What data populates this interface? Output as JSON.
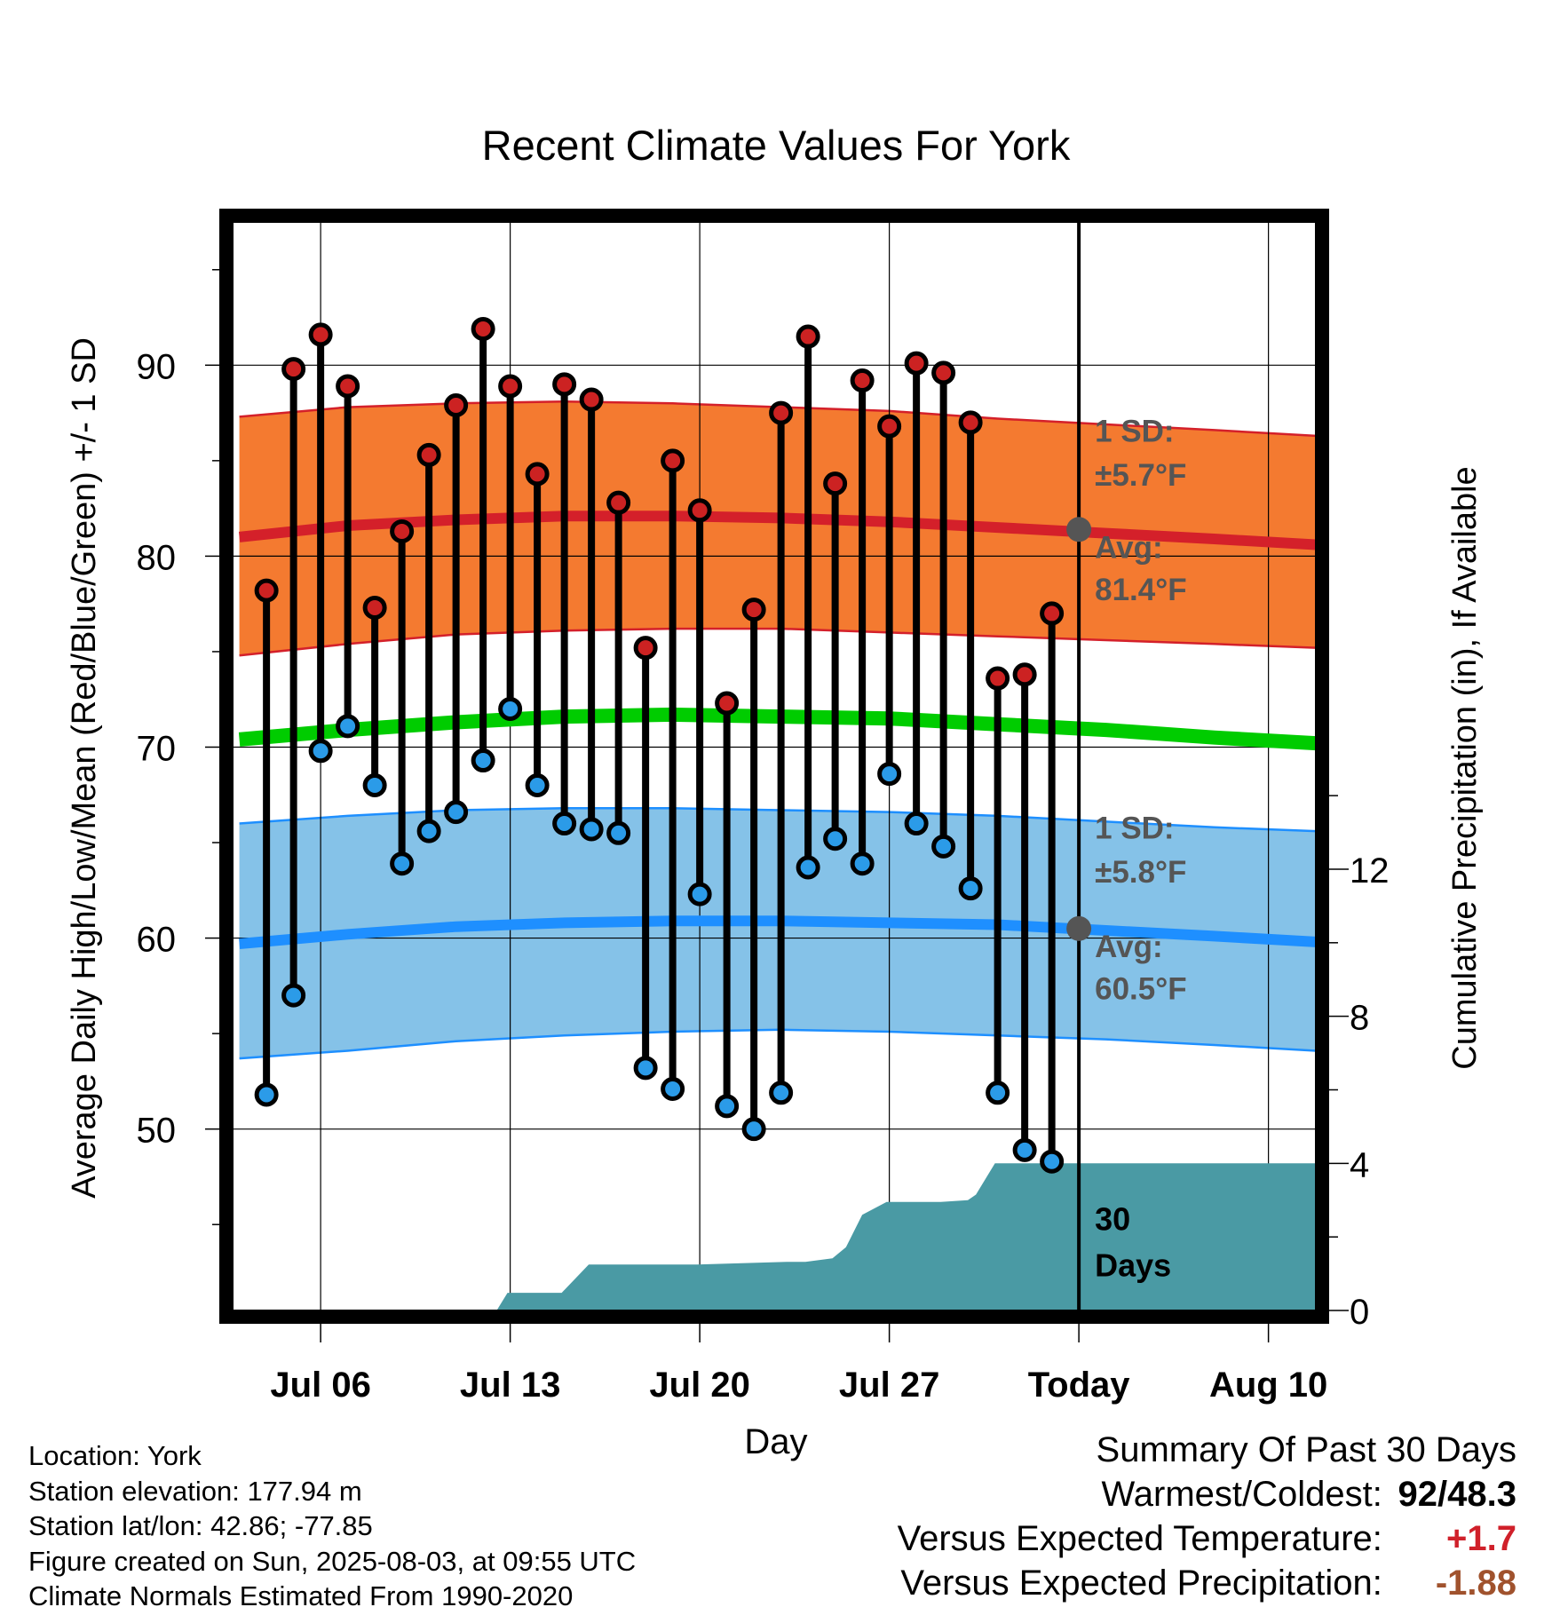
{
  "chart_data": {
    "type": "line",
    "title": "Recent Climate Values For York",
    "xlabel": "Day",
    "ylabel": "Average Daily High/Low/Mean (Red/Blue/Green) +/- 1 SD",
    "y2label": "Cumulative Precipitation (in), If Available",
    "xlim": [
      2.75,
      42.75
    ],
    "ylim": [
      40.5,
      97.5
    ],
    "y2lim": [
      0,
      29.6
    ],
    "x_ticks": [
      6,
      13,
      20,
      27,
      34,
      41
    ],
    "x_tick_labels": [
      "Jul 06",
      "Jul 13",
      "Jul 20",
      "Jul 27",
      "Today",
      "Aug 10"
    ],
    "y_ticks": [
      50,
      60,
      70,
      80,
      90
    ],
    "y_tick_labels": [
      "50",
      "60",
      "70",
      "80",
      "90"
    ],
    "y2_ticks": [
      0,
      4,
      8,
      12
    ],
    "y2_tick_labels": [
      "0",
      "4",
      "8",
      "12"
    ],
    "today_x": 34,
    "days": [
      4,
      5,
      6,
      7,
      8,
      9,
      10,
      11,
      12,
      13,
      14,
      15,
      16,
      17,
      18,
      19,
      20,
      21,
      22,
      23,
      24,
      25,
      26,
      27,
      28,
      29,
      30,
      31,
      32,
      33
    ],
    "highs": [
      78.2,
      89.8,
      91.6,
      88.9,
      77.3,
      81.3,
      85.3,
      87.9,
      91.9,
      88.9,
      84.3,
      89.0,
      88.2,
      82.8,
      75.2,
      85.0,
      82.4,
      72.3,
      77.2,
      87.5,
      91.5,
      83.8,
      89.2,
      86.8,
      90.1,
      89.6,
      87.0,
      73.6,
      73.8,
      77.0
    ],
    "lows": [
      51.8,
      57.0,
      69.8,
      71.1,
      68.0,
      63.9,
      65.6,
      66.6,
      69.3,
      72.0,
      68.0,
      66.0,
      65.7,
      65.5,
      53.2,
      52.1,
      62.3,
      51.2,
      50.0,
      51.9,
      63.7,
      65.2,
      63.9,
      68.6,
      66.0,
      64.8,
      62.6,
      51.9,
      48.9,
      48.3
    ],
    "normals_x": [
      3,
      7,
      11,
      15,
      19,
      23,
      27,
      31,
      35,
      39,
      42.75
    ],
    "normal_high": [
      81.0,
      81.6,
      81.9,
      82.1,
      82.1,
      82.0,
      81.8,
      81.5,
      81.2,
      80.9,
      80.6
    ],
    "normal_high_upper": [
      87.3,
      87.8,
      88.0,
      88.1,
      88.0,
      87.8,
      87.6,
      87.2,
      86.9,
      86.6,
      86.3
    ],
    "normal_high_lower": [
      74.8,
      75.4,
      75.9,
      76.1,
      76.2,
      76.2,
      76.0,
      75.8,
      75.6,
      75.4,
      75.2
    ],
    "normal_mean": [
      70.4,
      70.9,
      71.3,
      71.6,
      71.7,
      71.6,
      71.5,
      71.2,
      70.9,
      70.5,
      70.2
    ],
    "normal_low": [
      59.7,
      60.2,
      60.6,
      60.8,
      60.9,
      60.9,
      60.8,
      60.7,
      60.4,
      60.1,
      59.8
    ],
    "normal_low_upper": [
      66.0,
      66.4,
      66.7,
      66.8,
      66.8,
      66.7,
      66.6,
      66.4,
      66.1,
      65.8,
      65.6
    ],
    "normal_low_lower": [
      53.7,
      54.1,
      54.6,
      54.9,
      55.1,
      55.2,
      55.1,
      54.9,
      54.7,
      54.4,
      54.1
    ],
    "precip_x": [
      3,
      12.5,
      12.9,
      14.9,
      15.9,
      19.9,
      23.2,
      23.9,
      24.9,
      25.4,
      26.0,
      26.9,
      27.9,
      28.9,
      29.9,
      30.2,
      30.9,
      34,
      42.75
    ],
    "precip_cum": [
      0,
      0,
      0.48,
      0.48,
      1.25,
      1.25,
      1.32,
      1.32,
      1.42,
      1.72,
      2.6,
      2.95,
      2.95,
      2.95,
      3.0,
      3.15,
      4.0,
      4.0,
      4.0
    ],
    "annotations": {
      "high_sd_label": "1 SD:",
      "high_sd_value": "±5.7°F",
      "high_avg_label": "Avg:",
      "high_avg_value": "81.4°F",
      "low_sd_label": "1 SD:",
      "low_sd_value": "±5.8°F",
      "low_avg_label": "Avg:",
      "low_avg_value": "60.5°F",
      "days_label_1": "30",
      "days_label_2": "Days"
    },
    "today_high_avg": 81.4,
    "today_low_avg": 60.5,
    "grid": true,
    "colors": {
      "high_band": "#f47a30",
      "high_line": "#d4202a",
      "low_band": "#85c2e8",
      "low_line": "#1e8fff",
      "mean_line": "#00cc00",
      "precip_fill": "#4a9aa4",
      "high_dot": "#cc2222",
      "low_dot": "#2b9be8",
      "annotation_text": "#555555"
    }
  },
  "footer": {
    "location": "Location: York",
    "elevation": "Station elevation: 177.94 m",
    "latlon": "Station lat/lon: 42.86; -77.85",
    "created": "Figure created on Sun, 2025-08-03, at 09:55 UTC",
    "normals": "Climate Normals Estimated From 1990-2020"
  },
  "summary": {
    "title": "Summary Of Past 30 Days",
    "warmest_label": "Warmest/Coldest:",
    "warmest_value": "92/48.3",
    "temp_label": "Versus Expected Temperature:",
    "temp_value": "+1.7",
    "temp_color": "#d0202a",
    "precip_label": "Versus Expected Precipitation:",
    "precip_value": "-1.88",
    "precip_color": "#a0522d"
  }
}
